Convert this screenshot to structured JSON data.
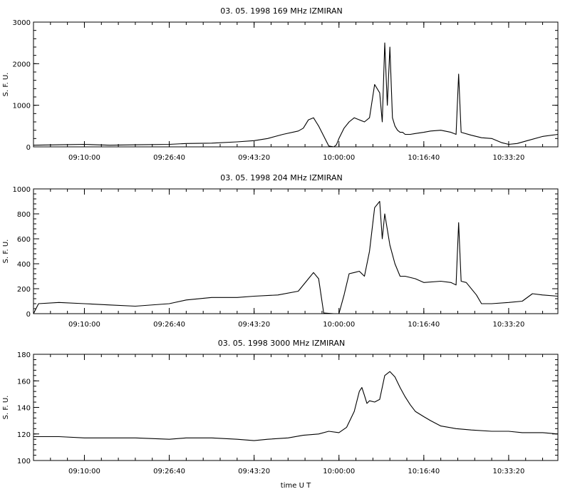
{
  "figure": {
    "xlabel": "time  U T"
  },
  "chart_data": [
    {
      "type": "line",
      "title": "03. 05. 1998    169 MHz    IZMIRAN",
      "ylabel": "S. F. U.",
      "xlabel": "",
      "xlim": [
        "09:00:00",
        "10:43:00"
      ],
      "ylim": [
        0,
        3000
      ],
      "yticks": [
        0,
        1000,
        2000,
        3000
      ],
      "xtick_labels": [
        "09:10:00",
        "09:26:40",
        "09:43:20",
        "10:00:00",
        "10:16:40",
        "10:33:20"
      ],
      "grid": false,
      "series": [
        {
          "x": [
            "09:00:00",
            "09:05:00",
            "09:10:00",
            "09:15:00",
            "09:20:00",
            "09:26:40",
            "09:30:00",
            "09:35:00",
            "09:40:00",
            "09:43:20",
            "09:46:00",
            "09:49:00",
            "09:52:00",
            "09:53:00",
            "09:54:00",
            "09:55:00",
            "09:55:30",
            "09:56:00",
            "09:58:00",
            "09:59:00",
            "09:59:30",
            "10:00:00",
            "10:01:00",
            "10:02:00",
            "10:03:00",
            "10:04:00",
            "10:05:00",
            "10:06:00",
            "10:07:00",
            "10:08:00",
            "10:08:30",
            "10:09:00",
            "10:09:30",
            "10:10:00",
            "10:10:30",
            "10:11:00",
            "10:11:30",
            "10:12:00",
            "10:12:30",
            "10:13:00",
            "10:14:00",
            "10:15:00",
            "10:16:40",
            "10:18:00",
            "10:20:00",
            "10:22:00",
            "10:23:00",
            "10:23:30",
            "10:24:00",
            "10:26:00",
            "10:28:00",
            "10:30:00",
            "10:32:00",
            "10:33:20",
            "10:35:00",
            "10:37:00",
            "10:40:00",
            "10:43:00"
          ],
          "y": [
            40,
            50,
            60,
            40,
            50,
            60,
            80,
            90,
            120,
            150,
            200,
            300,
            380,
            450,
            650,
            700,
            600,
            500,
            20,
            0,
            50,
            200,
            450,
            600,
            700,
            650,
            600,
            700,
            1500,
            1300,
            600,
            2500,
            1000,
            2400,
            700,
            500,
            400,
            350,
            350,
            300,
            300,
            320,
            350,
            380,
            400,
            350,
            300,
            1750,
            350,
            280,
            220,
            200,
            100,
            60,
            80,
            150,
            250,
            300
          ]
        }
      ]
    },
    {
      "type": "line",
      "title": "03. 05. 1998    204 MHz    IZMIRAN",
      "ylabel": "S. F. U.",
      "xlabel": "",
      "xlim": [
        "09:00:00",
        "10:43:00"
      ],
      "ylim": [
        0,
        1000
      ],
      "yticks": [
        0,
        200,
        400,
        600,
        800,
        1000
      ],
      "xtick_labels": [
        "09:10:00",
        "09:26:40",
        "09:43:20",
        "10:00:00",
        "10:16:40",
        "10:33:20"
      ],
      "grid": false,
      "series": [
        {
          "x": [
            "09:00:00",
            "09:01:00",
            "09:05:00",
            "09:10:00",
            "09:15:00",
            "09:20:00",
            "09:26:40",
            "09:30:00",
            "09:35:00",
            "09:40:00",
            "09:43:20",
            "09:48:00",
            "09:52:00",
            "09:54:00",
            "09:55:00",
            "09:56:00",
            "09:57:00",
            "09:59:00",
            "10:00:00",
            "10:01:00",
            "10:02:00",
            "10:03:00",
            "10:04:00",
            "10:05:00",
            "10:06:00",
            "10:07:00",
            "10:08:00",
            "10:08:30",
            "10:09:00",
            "10:10:00",
            "10:11:00",
            "10:12:00",
            "10:13:00",
            "10:15:00",
            "10:16:40",
            "10:20:00",
            "10:22:00",
            "10:23:00",
            "10:23:30",
            "10:24:00",
            "10:25:00",
            "10:27:00",
            "10:28:00",
            "10:30:00",
            "10:33:20",
            "10:36:00",
            "10:38:00",
            "10:40:00",
            "10:43:00"
          ],
          "y": [
            0,
            80,
            90,
            80,
            70,
            60,
            80,
            110,
            130,
            130,
            140,
            150,
            180,
            280,
            330,
            280,
            5,
            0,
            0,
            150,
            320,
            330,
            340,
            300,
            500,
            850,
            900,
            600,
            800,
            550,
            400,
            300,
            300,
            280,
            250,
            260,
            250,
            230,
            730,
            260,
            250,
            150,
            80,
            80,
            90,
            100,
            160,
            150,
            140
          ]
        }
      ]
    },
    {
      "type": "line",
      "title": "03. 05. 1998    3000 MHz    IZMIRAN",
      "ylabel": "S. F. U.",
      "xlabel": "time  U T",
      "xlim": [
        "09:00:00",
        "10:43:00"
      ],
      "ylim": [
        100,
        180
      ],
      "yticks": [
        100,
        120,
        140,
        160,
        180
      ],
      "xtick_labels": [
        "09:10:00",
        "09:26:40",
        "09:43:20",
        "10:00:00",
        "10:16:40",
        "10:33:20"
      ],
      "grid": false,
      "series": [
        {
          "x": [
            "09:00:00",
            "09:05:00",
            "09:10:00",
            "09:15:00",
            "09:20:00",
            "09:26:40",
            "09:30:00",
            "09:35:00",
            "09:40:00",
            "09:43:20",
            "09:46:00",
            "09:50:00",
            "09:53:00",
            "09:56:00",
            "09:58:00",
            "10:00:00",
            "10:01:30",
            "10:03:00",
            "10:04:00",
            "10:04:30",
            "10:05:00",
            "10:05:30",
            "10:06:00",
            "10:07:00",
            "10:08:00",
            "10:09:00",
            "10:10:00",
            "10:11:00",
            "10:12:00",
            "10:13:00",
            "10:14:00",
            "10:15:00",
            "10:16:40",
            "10:18:00",
            "10:20:00",
            "10:23:00",
            "10:26:00",
            "10:30:00",
            "10:33:20",
            "10:36:00",
            "10:40:00",
            "10:43:00"
          ],
          "y": [
            118,
            118,
            117,
            117,
            117,
            116,
            117,
            117,
            116,
            115,
            116,
            117,
            119,
            120,
            122,
            121,
            125,
            137,
            152,
            155,
            149,
            143,
            145,
            144,
            146,
            164,
            167,
            163,
            155,
            148,
            142,
            137,
            133,
            130,
            126,
            124,
            123,
            122,
            122,
            121,
            121,
            120
          ]
        }
      ]
    }
  ]
}
